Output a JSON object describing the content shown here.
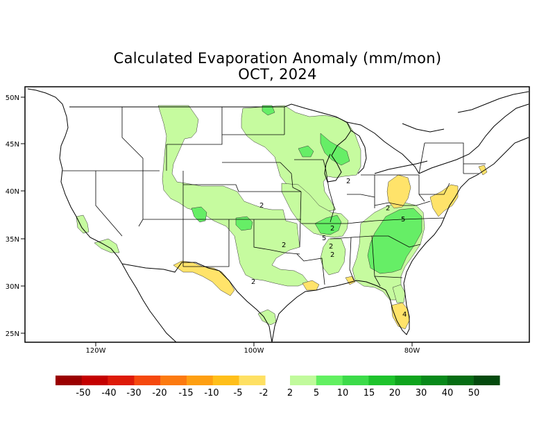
{
  "title": "Calculated Evaporation Anomaly (mm/mon)",
  "subtitle": "OCT, 2024",
  "lat_labels": [
    "50N",
    "45N",
    "40N",
    "35N",
    "30N",
    "25N"
  ],
  "lon_labels": [
    "120W",
    "100W",
    "80W"
  ],
  "contour_labels": [
    "2",
    "2",
    "2",
    "2",
    "2",
    "2",
    "2",
    "5",
    "5",
    "2",
    "4"
  ],
  "colors": {
    "land": "#ffffff",
    "border": "#000000",
    "pos_2": "#c6fb9f",
    "pos_5": "#66ee66",
    "pos_10": "#3ad94a",
    "neg_2": "#ffe36a",
    "neg_5": "#ffc21f"
  },
  "legend": {
    "neg_labels": [
      "-50",
      "-40",
      "-30",
      "-20",
      "-15",
      "-10",
      "-5",
      "-2"
    ],
    "pos_labels": [
      "2",
      "5",
      "10",
      "15",
      "20",
      "30",
      "40",
      "50"
    ],
    "neg_colors": [
      "#9a0000",
      "#c40000",
      "#dd1a08",
      "#f5480e",
      "#fc7a10",
      "#fe9f12",
      "#ffbf1a",
      "#fee063"
    ],
    "pos_colors": [
      "#c1fa9c",
      "#62f061",
      "#3cdb49",
      "#1ec32c",
      "#0fa41d",
      "#08891a",
      "#066d14",
      "#044a0e"
    ]
  }
}
